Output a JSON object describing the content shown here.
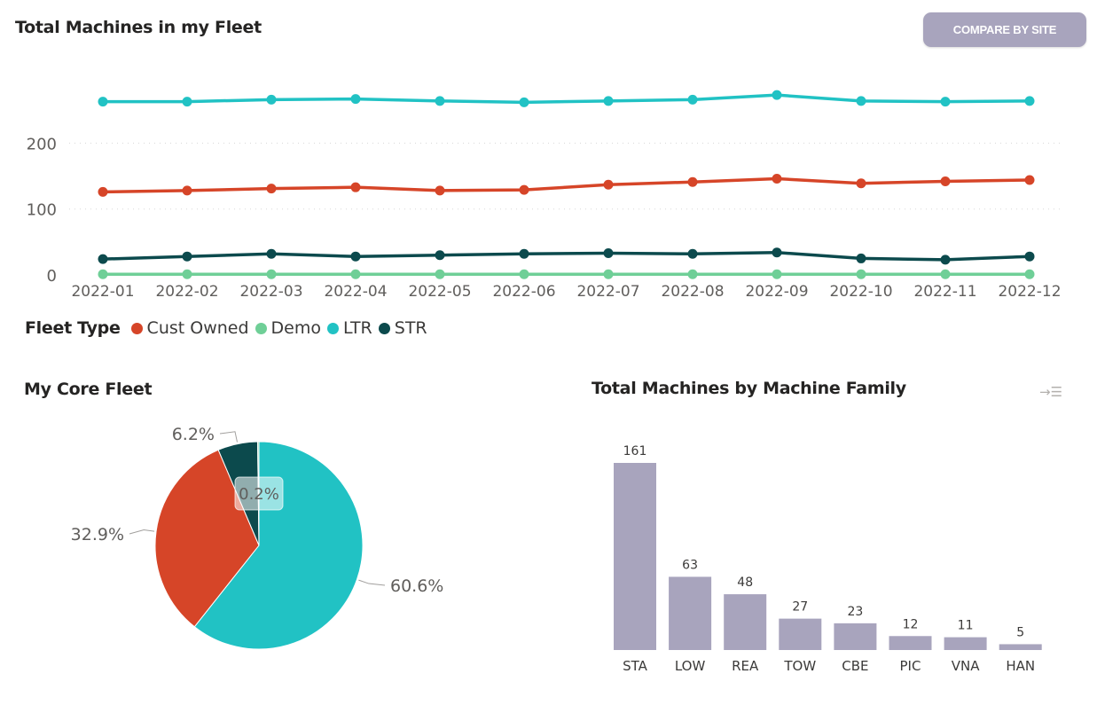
{
  "header": {
    "title": "Total Machines in my Fleet",
    "compare_button_label": "COMPARE BY SITE"
  },
  "colors": {
    "cust_owned": "#d64528",
    "demo": "#6fcf97",
    "ltr": "#21c2c4",
    "str": "#0c4a4d",
    "bar": "#a8a4bd"
  },
  "chart_data": [
    {
      "type": "line",
      "title": "Total Machines in my Fleet",
      "xlabel": "",
      "ylabel": "",
      "x": [
        "2022-01",
        "2022-02",
        "2022-03",
        "2022-04",
        "2022-05",
        "2022-06",
        "2022-07",
        "2022-08",
        "2022-09",
        "2022-10",
        "2022-11",
        "2022-12"
      ],
      "ylim": [
        0,
        270
      ],
      "yticks": [
        0,
        100,
        200
      ],
      "grid": true,
      "legend_title": "Fleet Type",
      "legend_position": "bottom-left",
      "series": [
        {
          "name": "Cust Owned",
          "color": "#d64528",
          "values": [
            126,
            128,
            131,
            133,
            128,
            129,
            137,
            141,
            146,
            139,
            142,
            144
          ]
        },
        {
          "name": "Demo",
          "color": "#6fcf97",
          "values": [
            1,
            1,
            1,
            1,
            1,
            1,
            1,
            1,
            1,
            1,
            1,
            1
          ]
        },
        {
          "name": "LTR",
          "color": "#21c2c4",
          "values": [
            263,
            263,
            266,
            267,
            264,
            262,
            264,
            266,
            273,
            264,
            263,
            264
          ]
        },
        {
          "name": "STR",
          "color": "#0c4a4d",
          "values": [
            24,
            28,
            32,
            28,
            30,
            32,
            33,
            32,
            34,
            25,
            23,
            28
          ]
        }
      ]
    },
    {
      "type": "pie",
      "title": "My Core Fleet",
      "slices": [
        {
          "label": "LTR",
          "value": 60.6,
          "display": "60.6%",
          "color": "#21c2c4"
        },
        {
          "label": "Cust Owned",
          "value": 32.9,
          "display": "32.9%",
          "color": "#d64528"
        },
        {
          "label": "STR",
          "value": 6.2,
          "display": "6.2%",
          "color": "#0c4a4d"
        },
        {
          "label": "Demo",
          "value": 0.2,
          "display": "0.2%",
          "color": "#6fcf97"
        }
      ]
    },
    {
      "type": "bar",
      "title": "Total Machines by Machine Family",
      "categories": [
        "STA",
        "LOW",
        "REA",
        "TOW",
        "CBE",
        "PIC",
        "VNA",
        "HAN"
      ],
      "values": [
        161,
        63,
        48,
        27,
        23,
        12,
        11,
        5
      ],
      "ylim": [
        0,
        161
      ],
      "color": "#a8a4bd"
    }
  ]
}
